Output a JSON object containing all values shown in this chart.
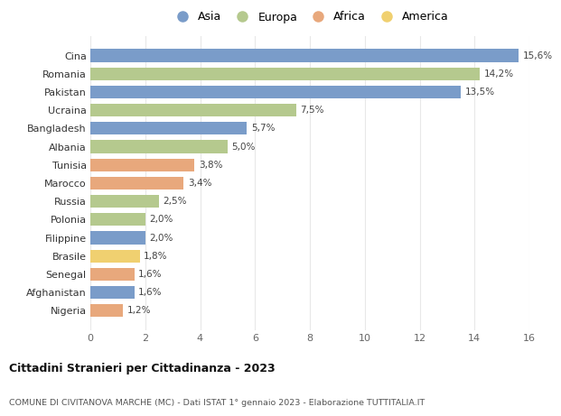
{
  "countries": [
    "Nigeria",
    "Afghanistan",
    "Senegal",
    "Brasile",
    "Filippine",
    "Polonia",
    "Russia",
    "Marocco",
    "Tunisia",
    "Albania",
    "Bangladesh",
    "Ucraina",
    "Pakistan",
    "Romania",
    "Cina"
  ],
  "values": [
    1.2,
    1.6,
    1.6,
    1.8,
    2.0,
    2.0,
    2.5,
    3.4,
    3.8,
    5.0,
    5.7,
    7.5,
    13.5,
    14.2,
    15.6
  ],
  "continents": [
    "Africa",
    "Asia",
    "Africa",
    "America",
    "Asia",
    "Europa",
    "Europa",
    "Africa",
    "Africa",
    "Europa",
    "Asia",
    "Europa",
    "Asia",
    "Europa",
    "Asia"
  ],
  "colors": {
    "Asia": "#7a9cc9",
    "Europa": "#b5c98e",
    "Africa": "#e8a87c",
    "America": "#f0d070"
  },
  "labels": [
    "1,2%",
    "1,6%",
    "1,6%",
    "1,8%",
    "2,0%",
    "2,0%",
    "2,5%",
    "3,4%",
    "3,8%",
    "5,0%",
    "5,7%",
    "7,5%",
    "13,5%",
    "14,2%",
    "15,6%"
  ],
  "xlim": [
    0,
    16
  ],
  "xticks": [
    0,
    2,
    4,
    6,
    8,
    10,
    12,
    14,
    16
  ],
  "title": "Cittadini Stranieri per Cittadinanza - 2023",
  "subtitle": "COMUNE DI CIVITANOVA MARCHE (MC) - Dati ISTAT 1° gennaio 2023 - Elaborazione TUTTITALIA.IT",
  "legend_order": [
    "Asia",
    "Europa",
    "Africa",
    "America"
  ],
  "bg_color": "#ffffff",
  "grid_color": "#e8e8e8",
  "bar_height": 0.7
}
